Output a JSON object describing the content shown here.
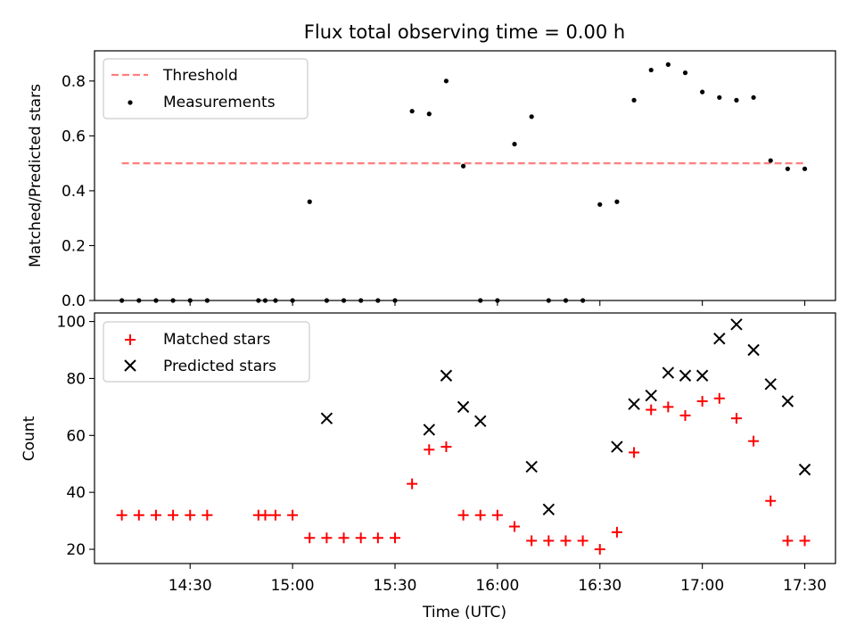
{
  "chart_data": [
    {
      "type": "scatter",
      "title": "Flux total observing time = 0.00 h",
      "xlabel": "",
      "ylabel": "Matched/Predicted stars",
      "xlim": [
        "14:02",
        "17:39"
      ],
      "ylim": [
        0,
        0.91
      ],
      "yticks": [
        0.0,
        0.2,
        0.4,
        0.6,
        0.8
      ],
      "ytick_labels": [
        "0.0",
        "0.2",
        "0.4",
        "0.6",
        "0.8"
      ],
      "legend_position": "top-left",
      "series": [
        {
          "name": "Threshold",
          "style": "dashed-line",
          "color": "#ff7f7f",
          "x": [
            "14:10",
            "17:30"
          ],
          "y": [
            0.5,
            0.5
          ]
        },
        {
          "name": "Measurements",
          "style": "dot",
          "color": "#000000",
          "x": [
            "14:10",
            "14:15",
            "14:20",
            "14:25",
            "14:30",
            "14:35",
            "14:50",
            "14:52",
            "14:55",
            "15:00",
            "15:05",
            "15:10",
            "15:15",
            "15:20",
            "15:25",
            "15:30",
            "15:35",
            "15:40",
            "15:45",
            "15:50",
            "15:55",
            "16:00",
            "16:05",
            "16:10",
            "16:15",
            "16:20",
            "16:25",
            "16:30",
            "16:35",
            "16:40",
            "16:45",
            "16:50",
            "16:55",
            "17:00",
            "17:05",
            "17:10",
            "17:15",
            "17:20",
            "17:25",
            "17:30"
          ],
          "y": [
            0,
            0,
            0,
            0,
            0,
            0,
            0,
            0,
            0,
            0,
            0.36,
            0,
            0,
            0,
            0,
            0,
            0.69,
            0.68,
            0.8,
            0.49,
            0,
            0,
            0.57,
            0.67,
            0,
            0,
            0,
            0.35,
            0.36,
            0.73,
            0.84,
            0.86,
            0.83,
            0.76,
            0.74,
            0.73,
            0.74,
            0.51,
            0.48,
            0.48
          ]
        }
      ]
    },
    {
      "type": "scatter",
      "title": "",
      "xlabel": "Time (UTC)",
      "ylabel": "Count",
      "xlim": [
        "14:02",
        "17:39"
      ],
      "ylim": [
        15,
        103
      ],
      "yticks": [
        20,
        40,
        60,
        80,
        100
      ],
      "ytick_labels": [
        "20",
        "40",
        "60",
        "80",
        "100"
      ],
      "xticks": [
        "14:30",
        "15:00",
        "15:30",
        "16:00",
        "16:30",
        "17:00",
        "17:30"
      ],
      "xtick_labels": [
        "14:30",
        "15:00",
        "15:30",
        "16:00",
        "16:30",
        "17:00",
        "17:30"
      ],
      "legend_position": "top-left",
      "series": [
        {
          "name": "Matched stars",
          "style": "plus",
          "color": "#ff0000",
          "x": [
            "14:10",
            "14:15",
            "14:20",
            "14:25",
            "14:30",
            "14:35",
            "14:50",
            "14:52",
            "14:55",
            "15:00",
            "15:05",
            "15:10",
            "15:15",
            "15:20",
            "15:25",
            "15:30",
            "15:35",
            "15:40",
            "15:45",
            "15:50",
            "15:55",
            "16:00",
            "16:05",
            "16:10",
            "16:15",
            "16:20",
            "16:25",
            "16:30",
            "16:35",
            "16:40",
            "16:45",
            "16:50",
            "16:55",
            "17:00",
            "17:05",
            "17:10",
            "17:15",
            "17:20",
            "17:25",
            "17:30"
          ],
          "y": [
            32,
            32,
            32,
            32,
            32,
            32,
            32,
            32,
            32,
            32,
            24,
            24,
            24,
            24,
            24,
            24,
            43,
            55,
            56,
            32,
            32,
            32,
            28,
            23,
            23,
            23,
            23,
            20,
            26,
            54,
            69,
            70,
            67,
            72,
            73,
            66,
            58,
            37,
            23,
            23
          ]
        },
        {
          "name": "Predicted stars",
          "style": "x",
          "color": "#000000",
          "x": [
            "15:10",
            "15:40",
            "15:45",
            "15:50",
            "15:55",
            "16:10",
            "16:15",
            "16:35",
            "16:40",
            "16:45",
            "16:50",
            "16:55",
            "17:00",
            "17:05",
            "17:10",
            "17:15",
            "17:20",
            "17:25",
            "17:30"
          ],
          "y": [
            66,
            62,
            81,
            70,
            65,
            49,
            34,
            56,
            71,
            74,
            82,
            81,
            81,
            94,
            99,
            90,
            78,
            72,
            48
          ]
        }
      ]
    }
  ]
}
